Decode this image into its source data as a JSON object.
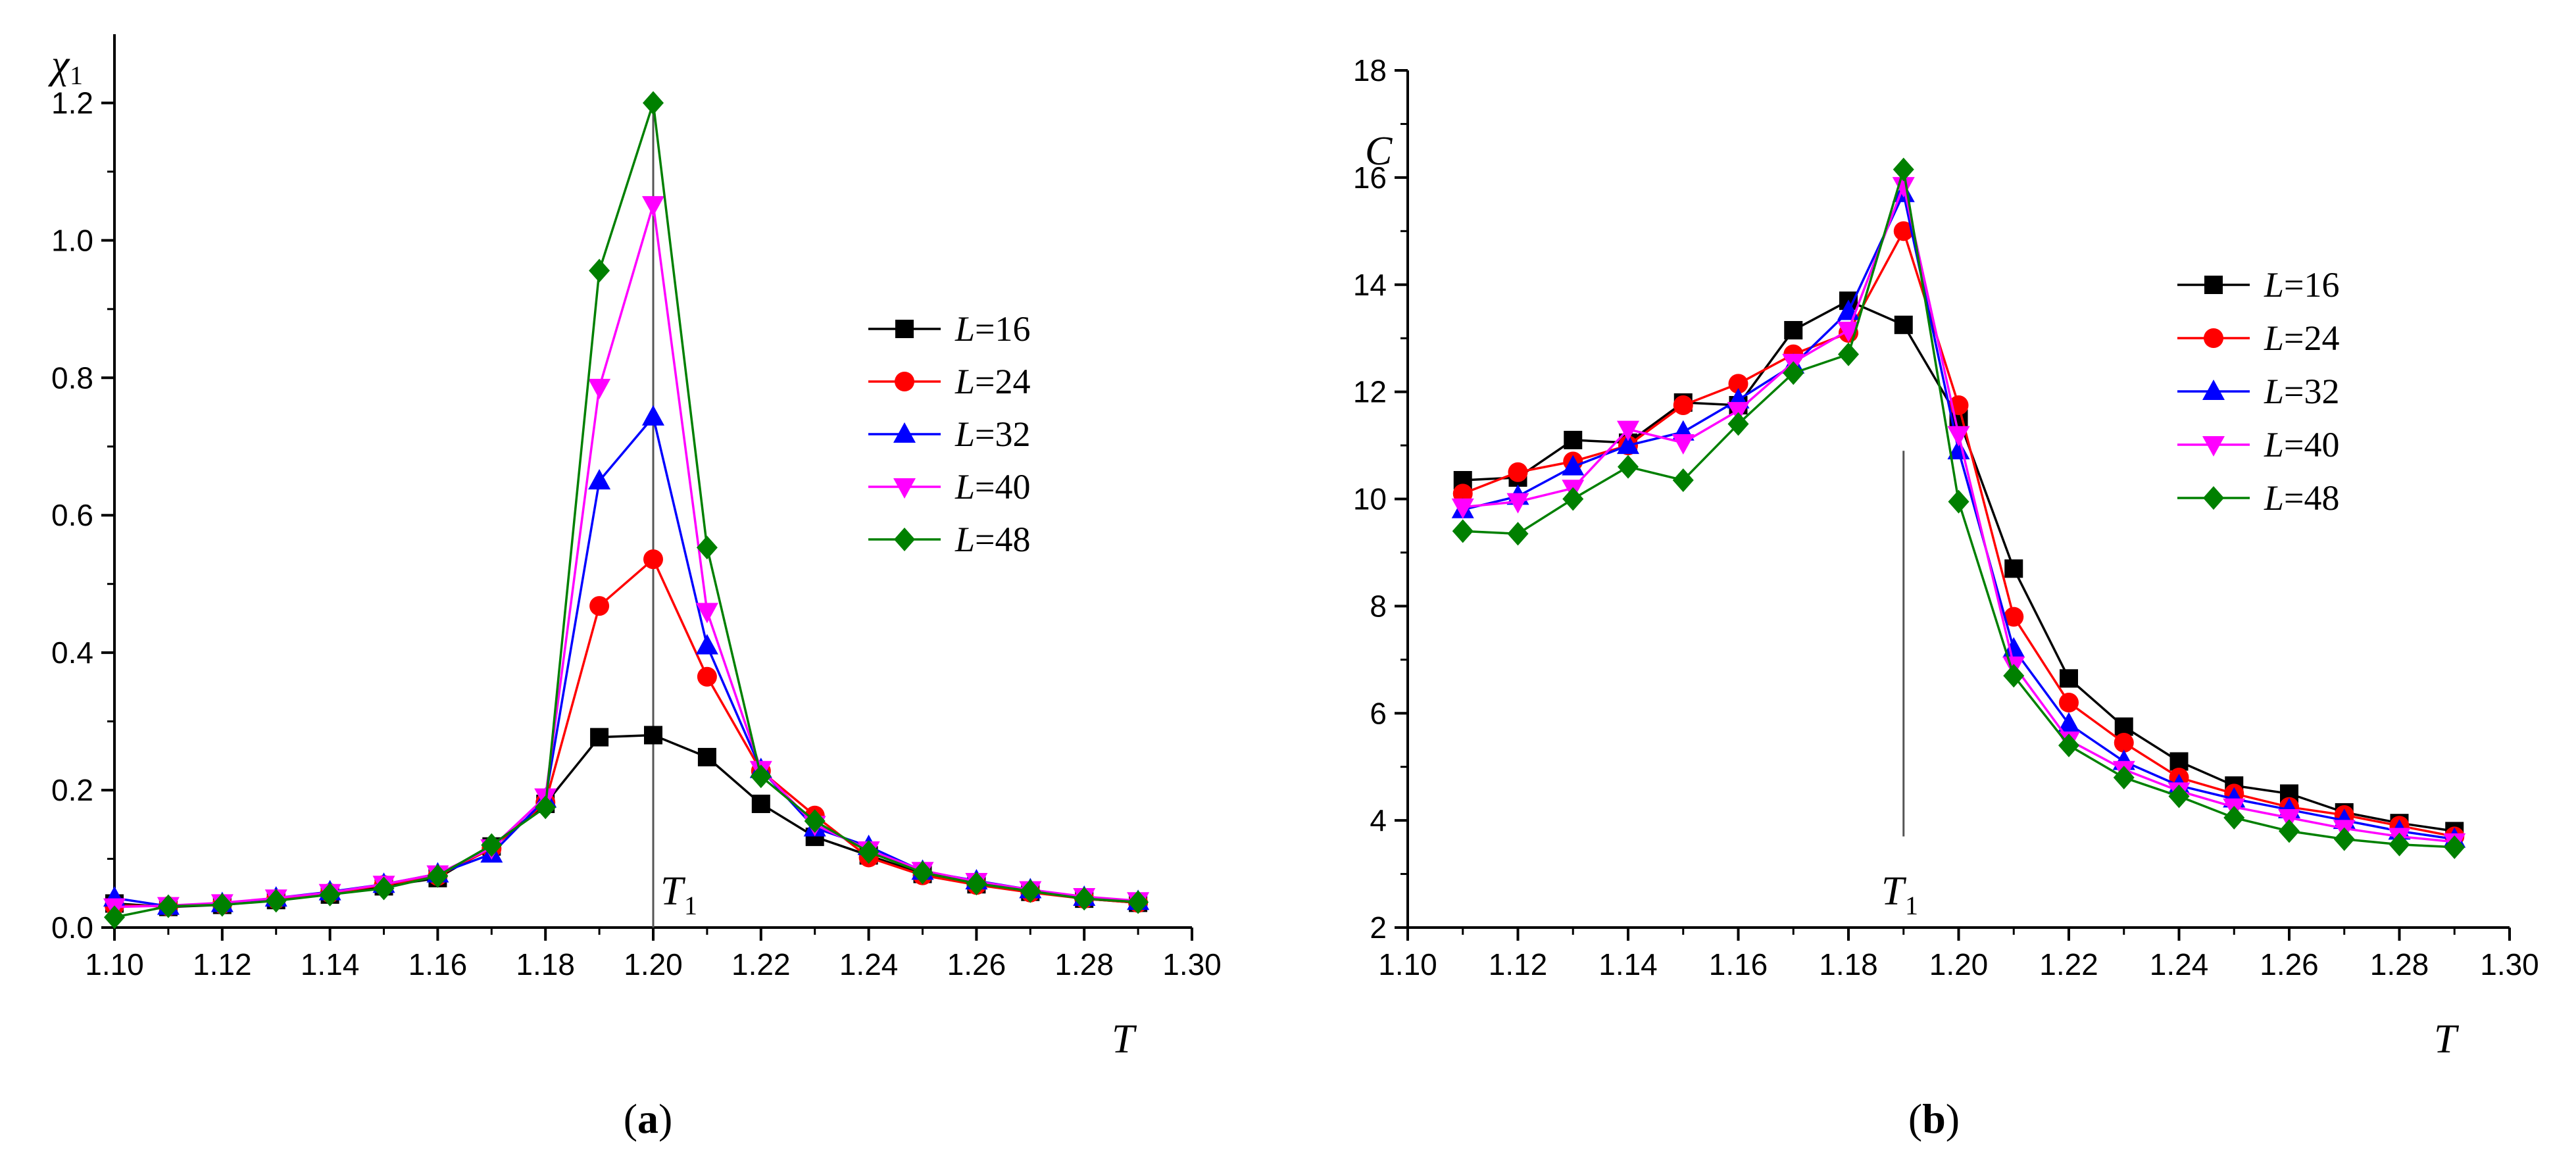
{
  "chart_data": [
    {
      "type": "line",
      "panel_label": "a",
      "ylabel": "χ",
      "ylabel_sub": "1",
      "xlabel": "T",
      "xlim": [
        1.1,
        1.3
      ],
      "ylim": [
        0.0,
        1.3
      ],
      "xticks": [
        1.1,
        1.12,
        1.14,
        1.16,
        1.18,
        1.2,
        1.22,
        1.24,
        1.26,
        1.28,
        1.3
      ],
      "yticks": [
        0.0,
        0.2,
        0.4,
        0.6,
        0.8,
        1.0,
        1.2
      ],
      "xtick_decimals": 2,
      "ytick_decimals": 1,
      "marker_line": {
        "x": 1.2,
        "y_from": 0.0,
        "y_to": 1.2,
        "label": "T",
        "label_sub": "1"
      },
      "legend_position": "center-right",
      "x": [
        1.1,
        1.11,
        1.12,
        1.13,
        1.14,
        1.15,
        1.16,
        1.17,
        1.18,
        1.19,
        1.2,
        1.21,
        1.22,
        1.23,
        1.24,
        1.25,
        1.26,
        1.27,
        1.28,
        1.29
      ],
      "series": [
        {
          "name": "L",
          "size": "=16",
          "color": "#000000",
          "marker": "square",
          "values": [
            0.035,
            0.03,
            0.033,
            0.04,
            0.048,
            0.06,
            0.072,
            0.118,
            0.18,
            0.277,
            0.28,
            0.248,
            0.18,
            0.132,
            0.105,
            0.078,
            0.063,
            0.052,
            0.042,
            0.036
          ]
        },
        {
          "name": "L",
          "size": "=24",
          "color": "#ff0000",
          "marker": "circle",
          "values": [
            0.032,
            0.031,
            0.034,
            0.041,
            0.05,
            0.062,
            0.075,
            0.115,
            0.182,
            0.468,
            0.536,
            0.365,
            0.228,
            0.163,
            0.102,
            0.076,
            0.062,
            0.051,
            0.042,
            0.036
          ]
        },
        {
          "name": "L",
          "size": "=32",
          "color": "#0000ff",
          "marker": "triangle-up",
          "values": [
            0.043,
            0.031,
            0.035,
            0.043,
            0.052,
            0.063,
            0.078,
            0.107,
            0.187,
            0.65,
            0.743,
            0.41,
            0.23,
            0.145,
            0.118,
            0.082,
            0.068,
            0.055,
            0.044,
            0.038
          ]
        },
        {
          "name": "L",
          "size": "=40",
          "color": "#ff00ff",
          "marker": "triangle-down",
          "values": [
            0.03,
            0.032,
            0.036,
            0.043,
            0.051,
            0.063,
            0.078,
            0.116,
            0.19,
            0.786,
            1.052,
            0.46,
            0.23,
            0.15,
            0.113,
            0.083,
            0.067,
            0.055,
            0.045,
            0.039
          ]
        },
        {
          "name": "L",
          "size": "=48",
          "color": "#008000",
          "marker": "diamond",
          "values": [
            0.015,
            0.031,
            0.033,
            0.039,
            0.048,
            0.057,
            0.075,
            0.12,
            0.175,
            0.956,
            1.2,
            0.553,
            0.22,
            0.155,
            0.11,
            0.08,
            0.064,
            0.053,
            0.042,
            0.037
          ]
        }
      ]
    },
    {
      "type": "line",
      "panel_label": "b",
      "ylabel": "C",
      "xlabel": "T",
      "xlim": [
        1.1,
        1.3
      ],
      "ylim": [
        2,
        18
      ],
      "xticks": [
        1.1,
        1.12,
        1.14,
        1.16,
        1.18,
        1.2,
        1.22,
        1.24,
        1.26,
        1.28,
        1.3
      ],
      "yticks": [
        2,
        4,
        6,
        8,
        10,
        12,
        14,
        16,
        18
      ],
      "xtick_decimals": 2,
      "ytick_decimals": 0,
      "marker_line": {
        "x": 1.19,
        "y_from": 3.7,
        "y_to": 10.9,
        "label": "T",
        "label_sub": "1"
      },
      "legend_position": "top-right",
      "x": [
        1.11,
        1.12,
        1.13,
        1.14,
        1.15,
        1.16,
        1.17,
        1.18,
        1.19,
        1.2,
        1.21,
        1.22,
        1.23,
        1.24,
        1.25,
        1.26,
        1.27,
        1.28,
        1.29
      ],
      "series": [
        {
          "name": "L",
          "size": "=16",
          "color": "#000000",
          "marker": "square",
          "values": [
            10.35,
            10.4,
            11.1,
            11.05,
            11.8,
            11.75,
            13.15,
            13.7,
            13.25,
            11.5,
            8.7,
            6.65,
            5.75,
            5.1,
            4.65,
            4.5,
            4.15,
            3.95,
            3.8
          ]
        },
        {
          "name": "L",
          "size": "=24",
          "color": "#ff0000",
          "marker": "circle",
          "values": [
            10.1,
            10.5,
            10.7,
            11.0,
            11.75,
            12.15,
            12.7,
            13.1,
            15.0,
            11.75,
            7.8,
            6.2,
            5.45,
            4.8,
            4.5,
            4.25,
            4.1,
            3.9,
            3.7
          ]
        },
        {
          "name": "L",
          "size": "=32",
          "color": "#0000ff",
          "marker": "triangle-up",
          "values": [
            9.8,
            10.05,
            10.6,
            11.0,
            11.25,
            11.85,
            12.5,
            13.5,
            15.7,
            10.9,
            7.2,
            5.8,
            5.1,
            4.65,
            4.4,
            4.2,
            4.0,
            3.8,
            3.65
          ]
        },
        {
          "name": "L",
          "size": "=40",
          "color": "#ff00ff",
          "marker": "triangle-down",
          "values": [
            9.85,
            9.95,
            10.2,
            11.3,
            11.05,
            11.65,
            12.55,
            13.15,
            15.85,
            11.2,
            6.9,
            5.5,
            4.95,
            4.55,
            4.25,
            4.05,
            3.85,
            3.7,
            3.6
          ]
        },
        {
          "name": "L",
          "size": "=48",
          "color": "#008000",
          "marker": "diamond",
          "values": [
            9.4,
            9.35,
            10.0,
            10.6,
            10.35,
            11.4,
            12.35,
            12.7,
            16.15,
            9.95,
            6.7,
            5.4,
            4.8,
            4.45,
            4.05,
            3.8,
            3.65,
            3.55,
            3.5
          ]
        }
      ]
    }
  ]
}
